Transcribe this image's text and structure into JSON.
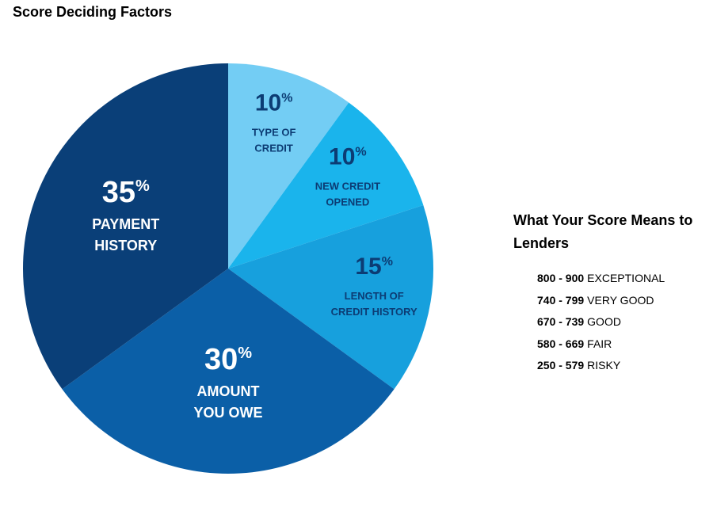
{
  "chart_data": {
    "type": "pie",
    "title": "Score Deciding Factors",
    "categories": [
      "TYPE OF\nCREDIT",
      "NEW CREDIT\nOPENED",
      "LENGTH OF\nCREDIT HISTORY",
      "AMOUNT\nYOU OWE",
      "PAYMENT\nHISTORY"
    ],
    "values": [
      10,
      10,
      15,
      30,
      35
    ],
    "value_labels": [
      "10%",
      "10%",
      "15%",
      "30%",
      "35%"
    ],
    "colors": [
      "#73cdf4",
      "#1ab4ec",
      "#17a0dd",
      "#0b5fa7",
      "#0a3f78"
    ],
    "label_colors": [
      "#0c3c74",
      "#0c3c74",
      "#0c3c74",
      "#ffffff",
      "#ffffff"
    ]
  },
  "score_ranges": {
    "title": "What Your Score Means to Lenders",
    "rows": [
      {
        "range": "800 - 900",
        "label": "EXCEPTIONAL"
      },
      {
        "range": "740 - 799",
        "label": "VERY GOOD"
      },
      {
        "range": "670 - 739",
        "label": "GOOD"
      },
      {
        "range": "580 - 669",
        "label": "FAIR"
      },
      {
        "range": "250 - 579",
        "label": "RISKY"
      }
    ]
  }
}
